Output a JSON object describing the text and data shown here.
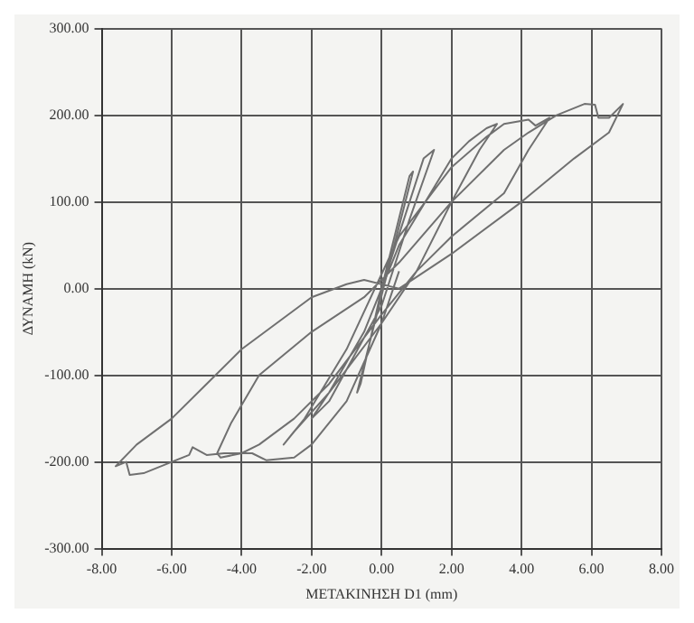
{
  "chart_data": {
    "type": "line",
    "xlabel": "ΜΕΤΑΚΙΝΗΣΗ D1 (mm)",
    "ylabel": "ΔΥΝΑΜΗ (kN)",
    "x": [
      0,
      0.8,
      0.9,
      0.3,
      -0.7,
      -0.6,
      0,
      1.2,
      1.5,
      0.8,
      0,
      -1.5,
      -2,
      -1.5,
      -0.5,
      0.5,
      2,
      2.5,
      3.0,
      3.3,
      2.8,
      2,
      1,
      0,
      -1.5,
      -2.5,
      -2.8,
      -2.2,
      -1,
      0.5,
      2,
      3,
      3.5,
      4.2,
      4.4,
      4.8,
      4.2,
      3.5,
      2,
      1,
      0,
      -1.5,
      -2.5,
      -3.5,
      -4.0,
      -4.6,
      -4.7,
      -4.3,
      -3.5,
      -2,
      -0.5,
      0.5,
      2,
      3.5,
      4.2,
      5,
      5.8,
      6.1,
      6.2,
      6.5,
      6.9,
      6.5,
      5.5,
      4,
      2,
      0.5,
      -0.5,
      -1,
      -2,
      -3,
      -4,
      -5,
      -6,
      -7,
      -7.6,
      -7.3,
      -7.2,
      -6.8,
      -6,
      -5.5,
      -5.4,
      -5,
      -4.5,
      -3.7,
      -3.3,
      -2.5,
      -2,
      -1,
      0,
      0.5
    ],
    "series": [
      {
        "color": "#707070",
        "values": [
          0,
          130,
          135,
          40,
          -120,
          -110,
          0,
          150,
          160,
          80,
          -20,
          -130,
          -150,
          -120,
          -50,
          50,
          150,
          170,
          185,
          190,
          160,
          100,
          20,
          -40,
          -120,
          -165,
          -180,
          -150,
          -70,
          60,
          140,
          175,
          190,
          195,
          188,
          197,
          160,
          110,
          60,
          20,
          -30,
          -110,
          -150,
          -180,
          -190,
          -195,
          -190,
          -155,
          -100,
          -50,
          -10,
          30,
          100,
          160,
          180,
          200,
          213,
          212,
          197,
          197,
          213,
          180,
          150,
          100,
          40,
          0,
          10,
          5,
          -10,
          -40,
          -70,
          -110,
          -150,
          -180,
          -205,
          -200,
          -215,
          -213,
          -200,
          -192,
          -183,
          -192,
          -190,
          -190,
          -198,
          -195,
          -180,
          -130,
          -40,
          20
        ]
      }
    ],
    "xlim": [
      -8,
      8
    ],
    "ylim": [
      -300,
      300
    ],
    "xticks": [
      {
        "value": -8,
        "label": "-8.00"
      },
      {
        "value": -6,
        "label": "-6.00"
      },
      {
        "value": -4,
        "label": "-4.00"
      },
      {
        "value": -2,
        "label": "-2.00"
      },
      {
        "value": 0,
        "label": "0.00"
      },
      {
        "value": 2,
        "label": "2.00"
      },
      {
        "value": 4,
        "label": "4.00"
      },
      {
        "value": 6,
        "label": "6.00"
      },
      {
        "value": 8,
        "label": "8.00"
      }
    ],
    "yticks": [
      {
        "value": -300,
        "label": "-300.00"
      },
      {
        "value": -200,
        "label": "-200.00"
      },
      {
        "value": -100,
        "label": "-100.00"
      },
      {
        "value": 0,
        "label": "0.00"
      },
      {
        "value": 100,
        "label": "100.00"
      },
      {
        "value": 200,
        "label": "200.00"
      },
      {
        "value": 300,
        "label": "300.00"
      }
    ],
    "grid": true,
    "legend": false,
    "marker": "none",
    "line_style": "solid"
  }
}
